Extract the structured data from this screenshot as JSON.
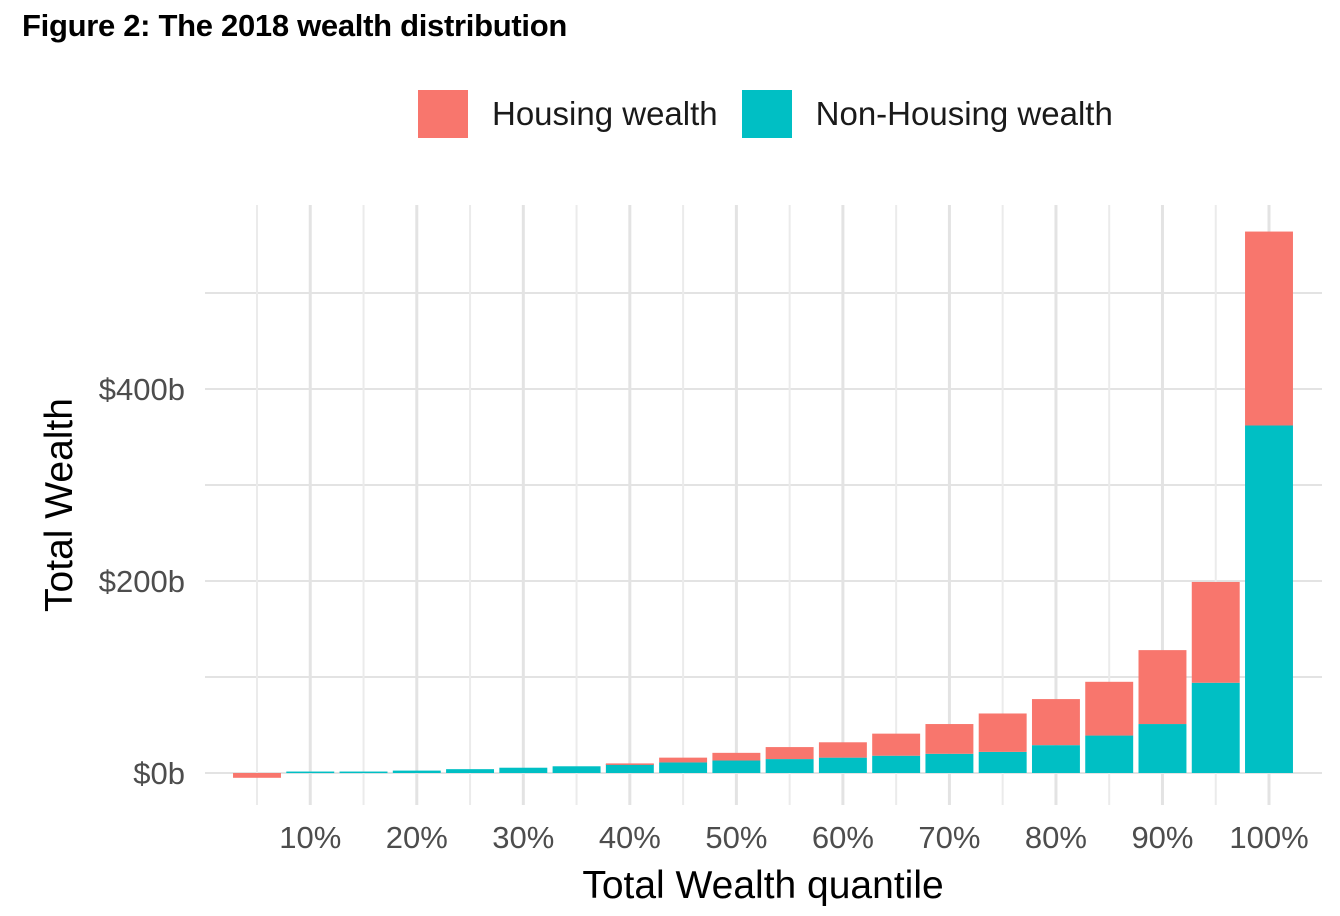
{
  "title": "Figure 2: The 2018 wealth distribution",
  "chart_data": {
    "type": "bar",
    "stacked": true,
    "title": "Figure 2: The 2018 wealth distribution",
    "xlabel": "Total Wealth quantile",
    "ylabel": "Total Wealth",
    "ylim": [
      -20,
      590
    ],
    "y_ticks": [
      0,
      200,
      400
    ],
    "y_tick_labels": [
      "$0b",
      "$200b",
      "$400b"
    ],
    "y_minor_ticks": [
      100,
      300,
      500
    ],
    "x_tick_labels": [
      "10%",
      "20%",
      "30%",
      "40%",
      "50%",
      "60%",
      "70%",
      "80%",
      "90%",
      "100%"
    ],
    "categories": [
      "5%",
      "10%",
      "15%",
      "20%",
      "25%",
      "30%",
      "35%",
      "40%",
      "45%",
      "50%",
      "55%",
      "60%",
      "65%",
      "70%",
      "75%",
      "80%",
      "85%",
      "90%",
      "95%",
      "100%"
    ],
    "legend_position": "top",
    "grid": true,
    "series": [
      {
        "name": "Non-Housing wealth",
        "color": "#00BFC4",
        "values": [
          0,
          1.5,
          1.5,
          2.5,
          4,
          5.5,
          7,
          9.5,
          11,
          13,
          14.5,
          16,
          18,
          20,
          22,
          29,
          39,
          51,
          94,
          362
        ]
      },
      {
        "name": "Housing wealth",
        "color": "#F8766D",
        "values": [
          -5,
          0,
          0,
          0,
          0,
          0,
          0,
          0.5,
          5,
          8,
          12.5,
          16,
          23,
          31,
          40,
          48,
          56,
          77,
          105,
          202
        ]
      }
    ]
  },
  "legend": [
    {
      "label": "Housing wealth",
      "color": "#F8766D"
    },
    {
      "label": "Non-Housing wealth",
      "color": "#00BFC4"
    }
  ]
}
